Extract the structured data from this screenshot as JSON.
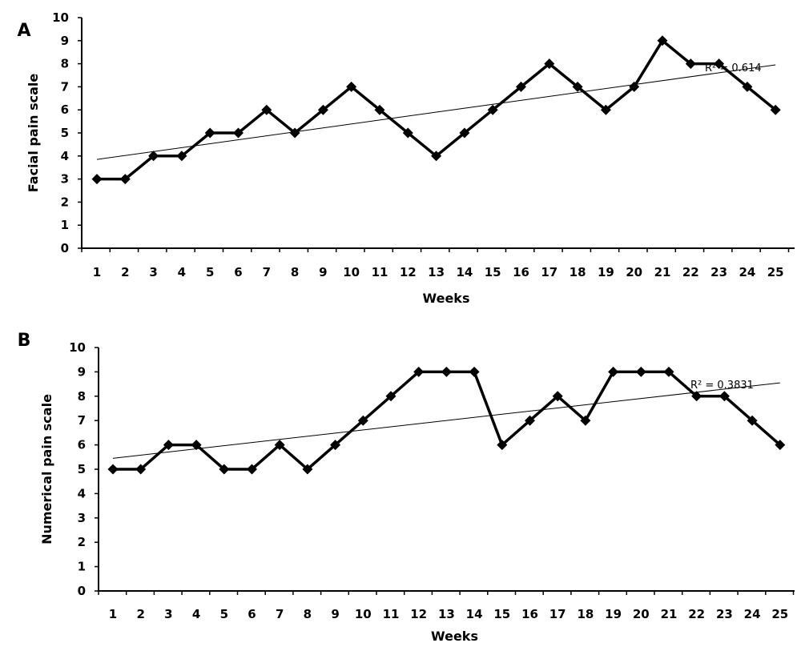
{
  "chart_data": [
    {
      "type": "line",
      "panel_label": "A",
      "xlabel": "Weeks",
      "ylabel": "Facial pain scale",
      "ylim": [
        0,
        10
      ],
      "y_ticks": [
        "0",
        "1",
        "2",
        "3",
        "4",
        "5",
        "6",
        "7",
        "8",
        "9",
        "10"
      ],
      "categories": [
        "1",
        "2",
        "3",
        "4",
        "5",
        "6",
        "7",
        "8",
        "9",
        "10",
        "11",
        "12",
        "13",
        "14",
        "15",
        "16",
        "17",
        "18",
        "19",
        "20",
        "21",
        "22",
        "23",
        "24",
        "25"
      ],
      "series": [
        {
          "values": [
            3,
            3,
            4,
            4,
            5,
            5,
            6,
            5,
            6,
            7,
            6,
            5,
            4,
            5,
            6,
            7,
            8,
            7,
            6,
            7,
            9,
            8,
            8,
            7,
            6
          ]
        }
      ],
      "trendline": {
        "type": "linear",
        "start": 3.85,
        "end": 7.95,
        "r2_text": "R² = 0.614"
      },
      "marker": "diamond",
      "grid": false,
      "legend": "none"
    },
    {
      "type": "line",
      "panel_label": "B",
      "xlabel": "Weeks",
      "ylabel": "Numerical pain scale",
      "ylim": [
        0,
        10
      ],
      "y_ticks": [
        "0",
        "1",
        "2",
        "3",
        "4",
        "5",
        "6",
        "7",
        "8",
        "9",
        "10"
      ],
      "categories": [
        "1",
        "2",
        "3",
        "4",
        "5",
        "6",
        "7",
        "8",
        "9",
        "10",
        "11",
        "12",
        "13",
        "14",
        "15",
        "16",
        "17",
        "18",
        "19",
        "20",
        "21",
        "22",
        "23",
        "24",
        "25"
      ],
      "series": [
        {
          "values": [
            5,
            5,
            6,
            6,
            5,
            5,
            6,
            5,
            6,
            7,
            8,
            9,
            9,
            9,
            6,
            7,
            8,
            7,
            9,
            9,
            9,
            8,
            8,
            7,
            6
          ]
        }
      ],
      "trendline": {
        "type": "linear",
        "start": 5.45,
        "end": 8.55,
        "r2_text": "R² = 0.3831"
      },
      "marker": "diamond",
      "grid": false,
      "legend": "none"
    }
  ]
}
